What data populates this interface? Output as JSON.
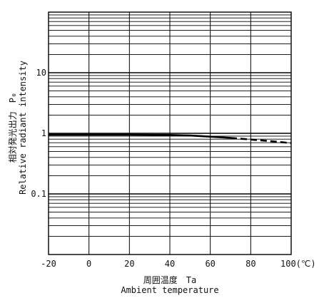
{
  "chart_data": {
    "type": "line",
    "x_axis": {
      "title_jp": "周囲温度　Ta",
      "title_en": "Ambient temperature",
      "ticks": [
        -20,
        0,
        20,
        40,
        60,
        80,
        100
      ],
      "tick_labels": [
        "-20",
        "0",
        "20",
        "40",
        "60",
        "80",
        "100(℃)"
      ],
      "range": [
        -20,
        100
      ]
    },
    "y_axis": {
      "title_jp": "相対発光出力　P₀",
      "title_en": "Relative radiant intensity",
      "scale": "log",
      "range": [
        0.01,
        100
      ],
      "ticks": [
        0.1,
        1,
        10
      ],
      "tick_labels": [
        "0.1",
        "1",
        "10"
      ]
    },
    "grid": true,
    "series": [
      {
        "style": "solid",
        "points": [
          [
            -20,
            0.95
          ],
          [
            0,
            0.95
          ],
          [
            20,
            0.95
          ],
          [
            40,
            0.94
          ],
          [
            50,
            0.92
          ],
          [
            60,
            0.88
          ],
          [
            70,
            0.84
          ]
        ]
      },
      {
        "style": "dashed",
        "points": [
          [
            70,
            0.84
          ],
          [
            80,
            0.79
          ],
          [
            90,
            0.74
          ],
          [
            100,
            0.69
          ]
        ]
      }
    ]
  }
}
